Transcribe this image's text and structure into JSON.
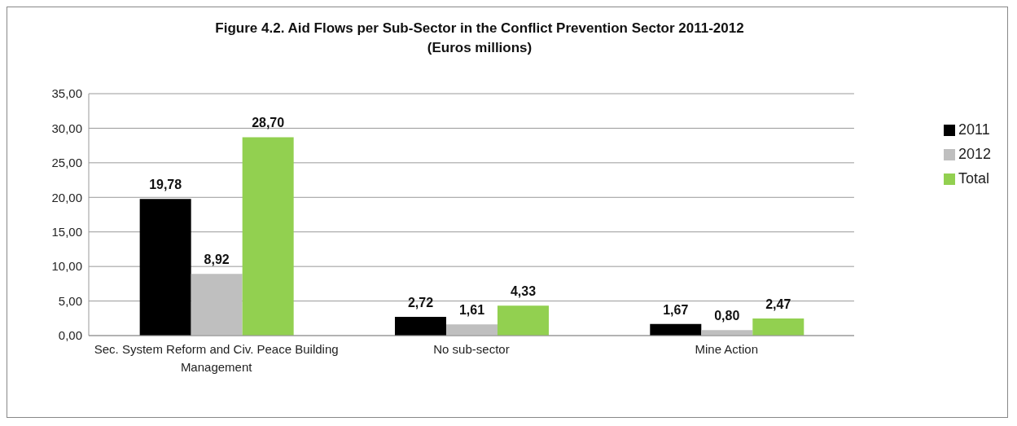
{
  "chart_data": {
    "type": "bar",
    "title": "Figure 4.2. Aid Flows per Sub-Sector in the Conflict Prevention Sector 2011-2012",
    "subtitle": "(Euros millions)",
    "categories": [
      "Sec. System Reform and Civ. Peace Building Management",
      "No sub-sector",
      "Mine Action"
    ],
    "series": [
      {
        "name": "2011",
        "color": "#000000",
        "values": [
          19.78,
          2.72,
          1.67
        ],
        "value_labels": [
          "19,78",
          "2,72",
          "1,67"
        ]
      },
      {
        "name": "2012",
        "color": "#bfbfbf",
        "values": [
          8.92,
          1.61,
          0.8
        ],
        "value_labels": [
          "8,92",
          "1,61",
          "0,80"
        ]
      },
      {
        "name": "Total",
        "color": "#92d050",
        "values": [
          28.7,
          4.33,
          2.47
        ],
        "value_labels": [
          "28,70",
          "4,33",
          "2,47"
        ]
      }
    ],
    "ylim": [
      0,
      35
    ],
    "yticks": [
      {
        "value": 0,
        "label": "0,00"
      },
      {
        "value": 5,
        "label": "5,00"
      },
      {
        "value": 10,
        "label": "10,00"
      },
      {
        "value": 15,
        "label": "15,00"
      },
      {
        "value": 20,
        "label": "20,00"
      },
      {
        "value": 25,
        "label": "25,00"
      },
      {
        "value": 30,
        "label": "30,00"
      },
      {
        "value": 35,
        "label": "35,00"
      }
    ],
    "grid": "y",
    "legend": "right"
  }
}
